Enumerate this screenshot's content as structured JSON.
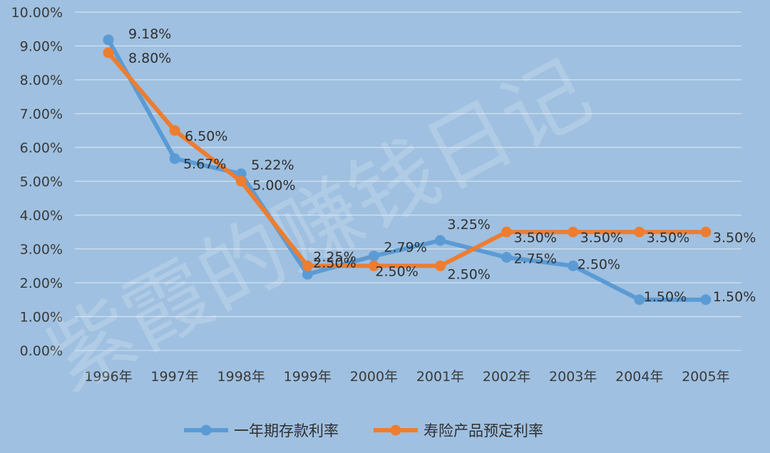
{
  "watermark": "紫霞的赚钱日记",
  "chart_data": {
    "type": "line",
    "categories": [
      "1996年",
      "1997年",
      "1998年",
      "1999年",
      "2000年",
      "2001年",
      "2002年",
      "2003年",
      "2004年",
      "2005年"
    ],
    "ylim": [
      0,
      10
    ],
    "y_ticks": [
      "0.00%",
      "1.00%",
      "2.00%",
      "3.00%",
      "4.00%",
      "5.00%",
      "6.00%",
      "7.00%",
      "8.00%",
      "9.00%",
      "10.00%"
    ],
    "grid": true,
    "legend_position": "bottom",
    "series": [
      {
        "name": "一年期存款利率",
        "color": "#5b9bd5",
        "values": [
          9.18,
          5.67,
          5.22,
          2.25,
          2.79,
          3.25,
          2.75,
          2.5,
          1.5,
          1.5
        ],
        "labels": [
          "9.18%",
          "5.67%",
          "5.22%",
          "2.25%",
          "2.79%",
          "3.25%",
          "2.75%",
          "2.50%",
          "1.50%",
          "1.50%"
        ]
      },
      {
        "name": "寿险产品预定利率",
        "color": "#ed7d31",
        "values": [
          8.8,
          6.5,
          5.0,
          2.5,
          2.5,
          2.5,
          3.5,
          3.5,
          3.5,
          3.5
        ],
        "labels": [
          "8.80%",
          "6.50%",
          "5.00%",
          "2.50%",
          "2.50%",
          "2.50%",
          "3.50%",
          "3.50%",
          "3.50%",
          "3.50%"
        ]
      }
    ]
  }
}
